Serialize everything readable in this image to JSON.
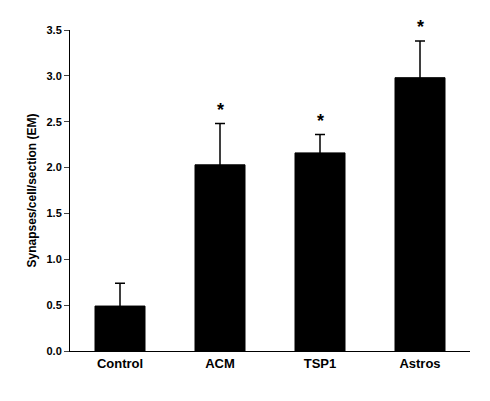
{
  "chart_data": {
    "type": "bar",
    "categories": [
      "Control",
      "ACM",
      "TSP1",
      "Astros"
    ],
    "values": [
      0.49,
      2.03,
      2.16,
      2.98
    ],
    "errors": [
      0.25,
      0.45,
      0.2,
      0.4
    ],
    "color": "#000000",
    "ylabel": "Synapses/cell/section (EM)",
    "ylim": [
      0,
      3.5
    ],
    "yticks": [
      {
        "value": 0,
        "label": "0.0"
      },
      0.5,
      {
        "value": 1.0,
        "label": "1.0"
      },
      1.5,
      {
        "value": 2.0,
        "label": "2.0"
      },
      2.5,
      {
        "value": 3.0,
        "label": "3.0"
      },
      3.5
    ],
    "annotations": [
      {
        "category": "ACM",
        "text": "*"
      },
      {
        "category": "TSP1",
        "text": "*"
      },
      {
        "category": "Astros",
        "text": "*"
      }
    ],
    "grid": false
  }
}
